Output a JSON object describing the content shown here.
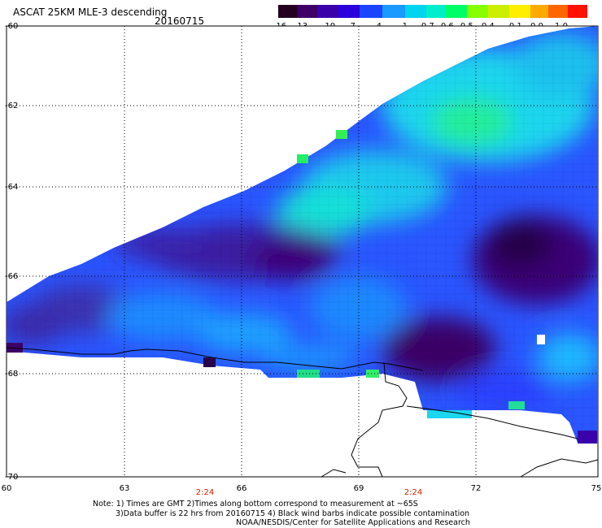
{
  "header": {
    "title": "ASCAT 25KM MLE-3 descending",
    "date": "20160715"
  },
  "colorbar": {
    "labels": [
      "-16",
      "-13",
      "-10",
      "-7",
      "-4",
      "-1",
      "-0.7",
      "-0.6",
      "-0.5",
      "-0.4",
      "-0.1",
      "0.0",
      "1.0"
    ],
    "colors": [
      "#240020",
      "#3c0066",
      "#4a0099",
      "#2a00cc",
      "#1a33ff",
      "#1a88ff",
      "#00d4ee",
      "#00e8c0",
      "#00ff66",
      "#a0ff00",
      "#ffff00",
      "#ffaa00",
      "#ff5500",
      "#ff0000"
    ]
  },
  "axes": {
    "y_labels": [
      "-60",
      "-62",
      "-64",
      "-66",
      "-68",
      "-70"
    ],
    "x_labels": [
      "60",
      "63",
      "66",
      "69",
      "72",
      "75"
    ],
    "pass_times": [
      "2:24",
      "2:24"
    ]
  },
  "notes": [
    "Note: 1) Times are GMT 2)Times along bottom correspond to measurement at ~65S",
    "3)Data buffer is 22 hrs from 20160715 4) Black wind barbs indicate possible contamination",
    "NOAA/NESDIS/Center for Satellite Applications and Research"
  ]
}
